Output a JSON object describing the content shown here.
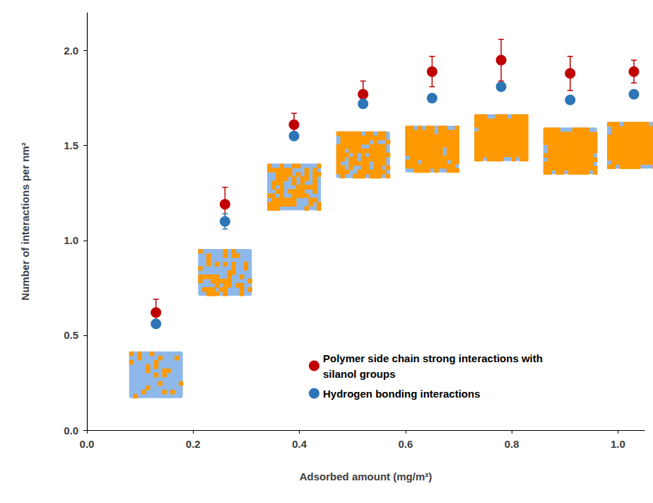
{
  "chart_data": {
    "type": "scatter",
    "x_label": "Adsorbed amount (mg/m²)",
    "y_label": "Number of interactions per nm²",
    "x": [
      0.13,
      0.26,
      0.39,
      0.52,
      0.65,
      0.78,
      0.91,
      1.03
    ],
    "series": [
      {
        "name": "Polymer side chain strong interactions with silanol groups",
        "color": "#c00000",
        "marker": "circle",
        "values": [
          0.62,
          1.19,
          1.61,
          1.77,
          1.89,
          1.95,
          1.88,
          1.89
        ],
        "errors": [
          0.07,
          0.09,
          0.06,
          0.07,
          0.08,
          0.11,
          0.09,
          0.06
        ]
      },
      {
        "name": "Hydrogen bonding interactions",
        "color": "#2e75b6",
        "marker": "circle",
        "values": [
          0.56,
          1.1,
          1.55,
          1.72,
          1.75,
          1.81,
          1.74,
          1.77
        ],
        "errors": [
          0.01,
          0.04,
          0.01,
          0.01,
          0.01,
          0.01,
          0.01,
          0.01
        ]
      }
    ],
    "xlim": [
      0,
      1.05
    ],
    "xticks": [
      {
        "value": 0,
        "label": "0.0"
      },
      {
        "value": 0.2,
        "label": "0.2"
      },
      {
        "value": 0.4,
        "label": "0.4"
      },
      {
        "value": 0.6,
        "label": "0.6"
      },
      {
        "value": 0.8,
        "label": "0.8"
      },
      {
        "value": 1,
        "label": "1.0"
      }
    ],
    "ylim": [
      0,
      2.2
    ],
    "yticks": [
      {
        "value": 0,
        "label": "0.0"
      },
      {
        "value": 0.5,
        "label": "0.5"
      },
      {
        "value": 1,
        "label": "1.0"
      },
      {
        "value": 1.5,
        "label": "1.5"
      },
      {
        "value": 2,
        "label": "2.0"
      }
    ],
    "legend": "lower right",
    "grid": false
  }
}
